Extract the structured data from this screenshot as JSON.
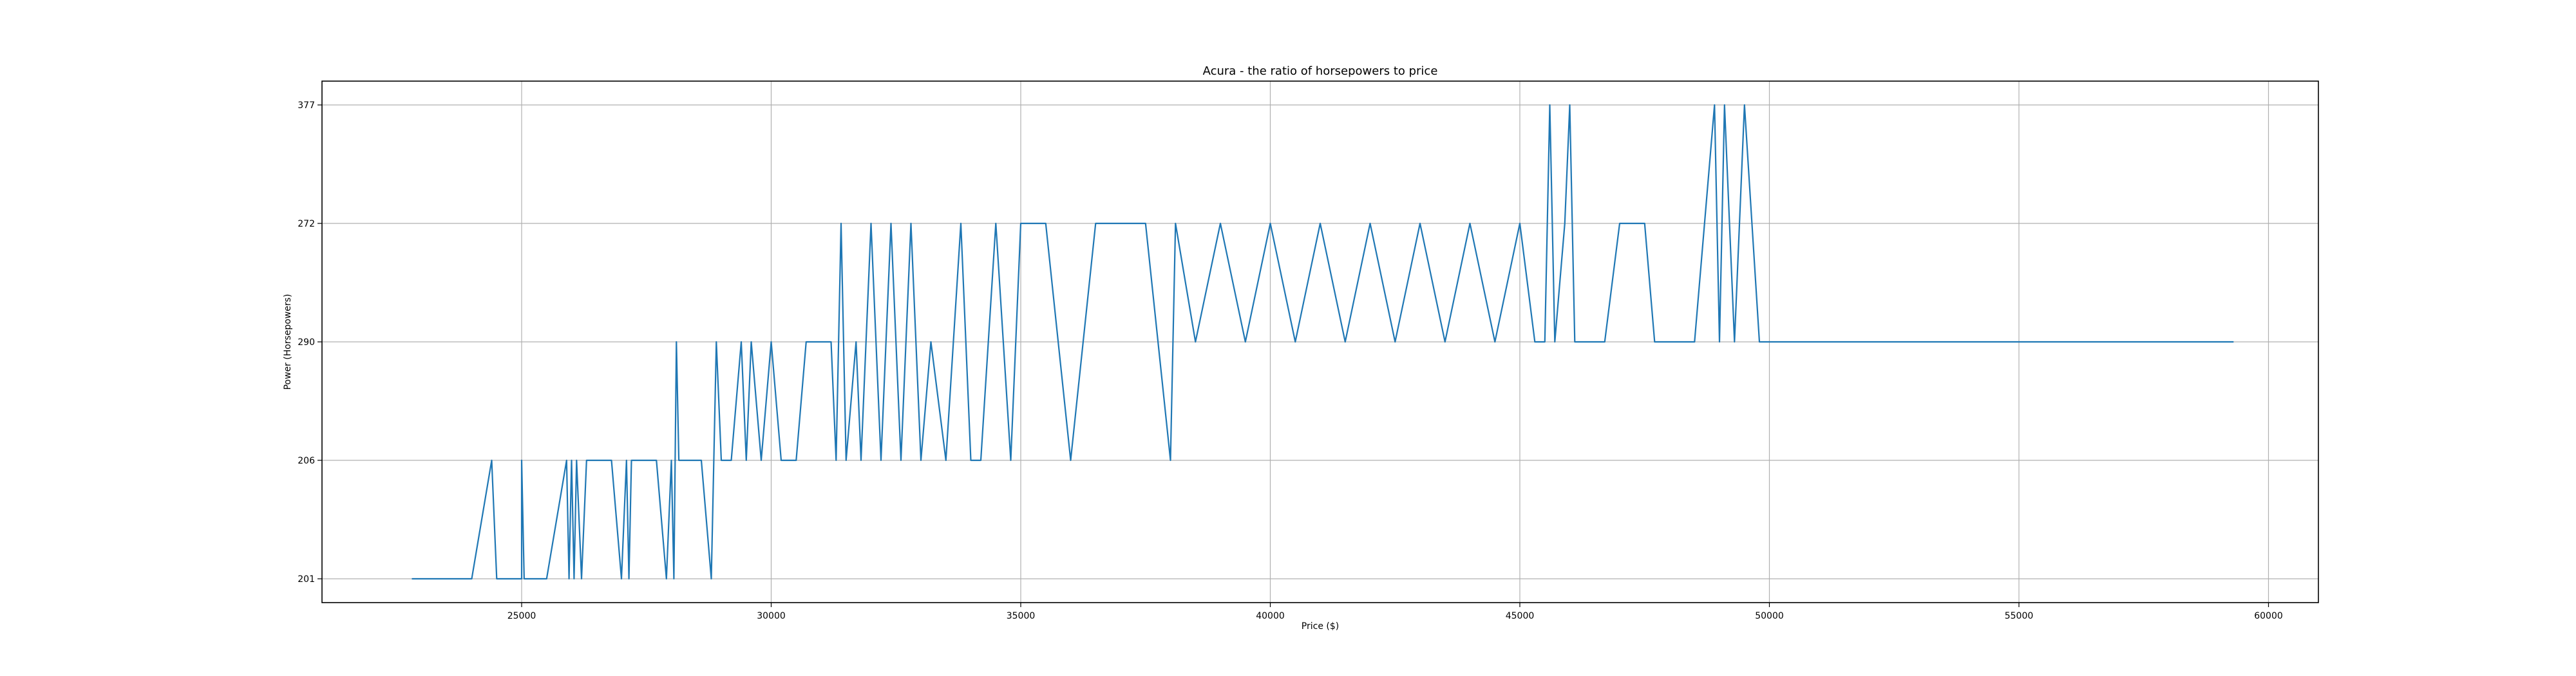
{
  "chart_data": {
    "type": "line",
    "title": "Acura - the ratio of horsepowers to price",
    "xlabel": "Price ($)",
    "ylabel": "Power (Horsepowers)",
    "xlim": [
      21000,
      61000
    ],
    "x_ticks": [
      25000,
      30000,
      35000,
      40000,
      45000,
      50000,
      55000,
      60000
    ],
    "y_categories": [
      "201",
      "206",
      "290",
      "272",
      "377"
    ],
    "grid": true,
    "legend": "none",
    "line_color": "#1f77b4",
    "series": [
      {
        "x": [
          22800,
          23300,
          23800,
          24000,
          24400,
          24500,
          24800,
          25000,
          25000,
          25050,
          25400,
          25500,
          25900,
          25950,
          26000,
          26050,
          26100,
          26200,
          26300,
          26500,
          26800,
          27000,
          27100,
          27150,
          27200,
          27300,
          27500,
          27700,
          27900,
          28000,
          28050,
          28100,
          28150,
          28200,
          28400,
          28600,
          28800,
          28900,
          29000,
          29200,
          29400,
          29500,
          29600,
          29800,
          30000,
          30200,
          30500,
          30700,
          31000,
          31200,
          31300,
          31400,
          31500,
          31700,
          31800,
          32000,
          32200,
          32400,
          32600,
          32800,
          33000,
          33200,
          33500,
          33800,
          34000,
          34200,
          34500,
          34800,
          35000,
          35500,
          36000,
          36500,
          37000,
          37500,
          38000,
          38100,
          38500,
          39000,
          39500,
          40000,
          40500,
          41000,
          41500,
          42000,
          42500,
          43000,
          43500,
          44000,
          44500,
          45000,
          45300,
          45500,
          45600,
          45700,
          45900,
          46000,
          46100,
          46300,
          46700,
          47000,
          47500,
          47700,
          48000,
          48500,
          48900,
          49000,
          49100,
          49300,
          49500,
          49800,
          50000,
          52000,
          55000,
          57000,
          59300
        ],
        "y": [
          "201",
          "201",
          "201",
          "201",
          "206",
          "201",
          "201",
          "201",
          "206",
          "201",
          "201",
          "201",
          "206",
          "201",
          "206",
          "201",
          "206",
          "201",
          "206",
          "206",
          "206",
          "201",
          "206",
          "201",
          "206",
          "206",
          "206",
          "206",
          "201",
          "206",
          "201",
          "290",
          "206",
          "206",
          "206",
          "206",
          "201",
          "290",
          "206",
          "206",
          "290",
          "206",
          "290",
          "206",
          "290",
          "206",
          "206",
          "290",
          "290",
          "290",
          "206",
          "272",
          "206",
          "290",
          "206",
          "272",
          "206",
          "272",
          "206",
          "272",
          "206",
          "290",
          "206",
          "272",
          "206",
          "206",
          "272",
          "206",
          "272",
          "272",
          "206",
          "272",
          "272",
          "272",
          "206",
          "272",
          "290",
          "272",
          "290",
          "272",
          "290",
          "272",
          "290",
          "272",
          "290",
          "272",
          "290",
          "272",
          "290",
          "272",
          "290",
          "290",
          "377",
          "290",
          "272",
          "377",
          "290",
          "290",
          "290",
          "272",
          "272",
          "290",
          "290",
          "290",
          "377",
          "290",
          "377",
          "290",
          "377",
          "290",
          "290",
          "290",
          "290",
          "290",
          "290"
        ]
      }
    ]
  }
}
